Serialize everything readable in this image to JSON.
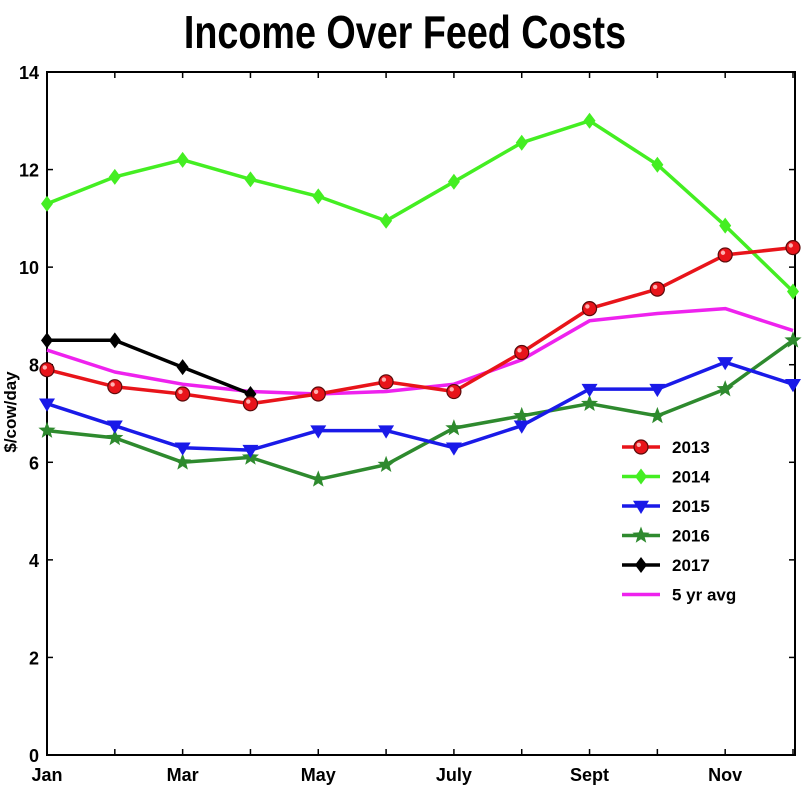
{
  "chart_data": {
    "type": "line",
    "title": "Income Over Feed Costs",
    "ylabel": "$/cow/day",
    "xlabel": "",
    "ylim": [
      0,
      14
    ],
    "yticks": [
      0,
      2,
      4,
      6,
      8,
      10,
      12,
      14
    ],
    "x": [
      1,
      2,
      3,
      4,
      5,
      6,
      7,
      8,
      9,
      10,
      11,
      12
    ],
    "xtick_labels": [
      "Jan",
      "Mar",
      "May",
      "July",
      "Sept",
      "Nov"
    ],
    "xtick_positions": [
      1,
      3,
      5,
      7,
      9,
      11
    ],
    "grid": false,
    "legend_position": "right-middle",
    "series": [
      {
        "name": "2013",
        "color": "#e8141a",
        "marker": "circle",
        "values": [
          7.9,
          7.55,
          7.4,
          7.2,
          7.4,
          7.65,
          7.45,
          8.25,
          9.15,
          9.55,
          10.25,
          10.4
        ]
      },
      {
        "name": "2014",
        "color": "#44ee22",
        "marker": "diamond",
        "values": [
          11.3,
          11.85,
          12.2,
          11.8,
          11.45,
          10.95,
          11.75,
          12.55,
          13.0,
          12.1,
          10.85,
          9.5
        ]
      },
      {
        "name": "2015",
        "color": "#1a1ae8",
        "marker": "triangle-down",
        "values": [
          7.2,
          6.75,
          6.3,
          6.25,
          6.65,
          6.65,
          6.3,
          6.75,
          7.5,
          7.5,
          8.05,
          7.6
        ]
      },
      {
        "name": "2016",
        "color": "#2e8a2e",
        "marker": "star",
        "values": [
          6.65,
          6.5,
          6.0,
          6.1,
          5.65,
          5.95,
          6.7,
          6.95,
          7.2,
          6.95,
          7.5,
          8.5
        ]
      },
      {
        "name": "2017",
        "color": "#000000",
        "marker": "diamond",
        "values": [
          8.5,
          8.5,
          7.95,
          7.4,
          null,
          null,
          null,
          null,
          null,
          null,
          null,
          null
        ]
      },
      {
        "name": "5 yr avg",
        "color": "#ee22ee",
        "marker": "none",
        "values": [
          8.3,
          7.85,
          7.6,
          7.45,
          7.4,
          7.45,
          7.6,
          8.1,
          8.9,
          9.05,
          9.15,
          8.7
        ]
      }
    ]
  }
}
